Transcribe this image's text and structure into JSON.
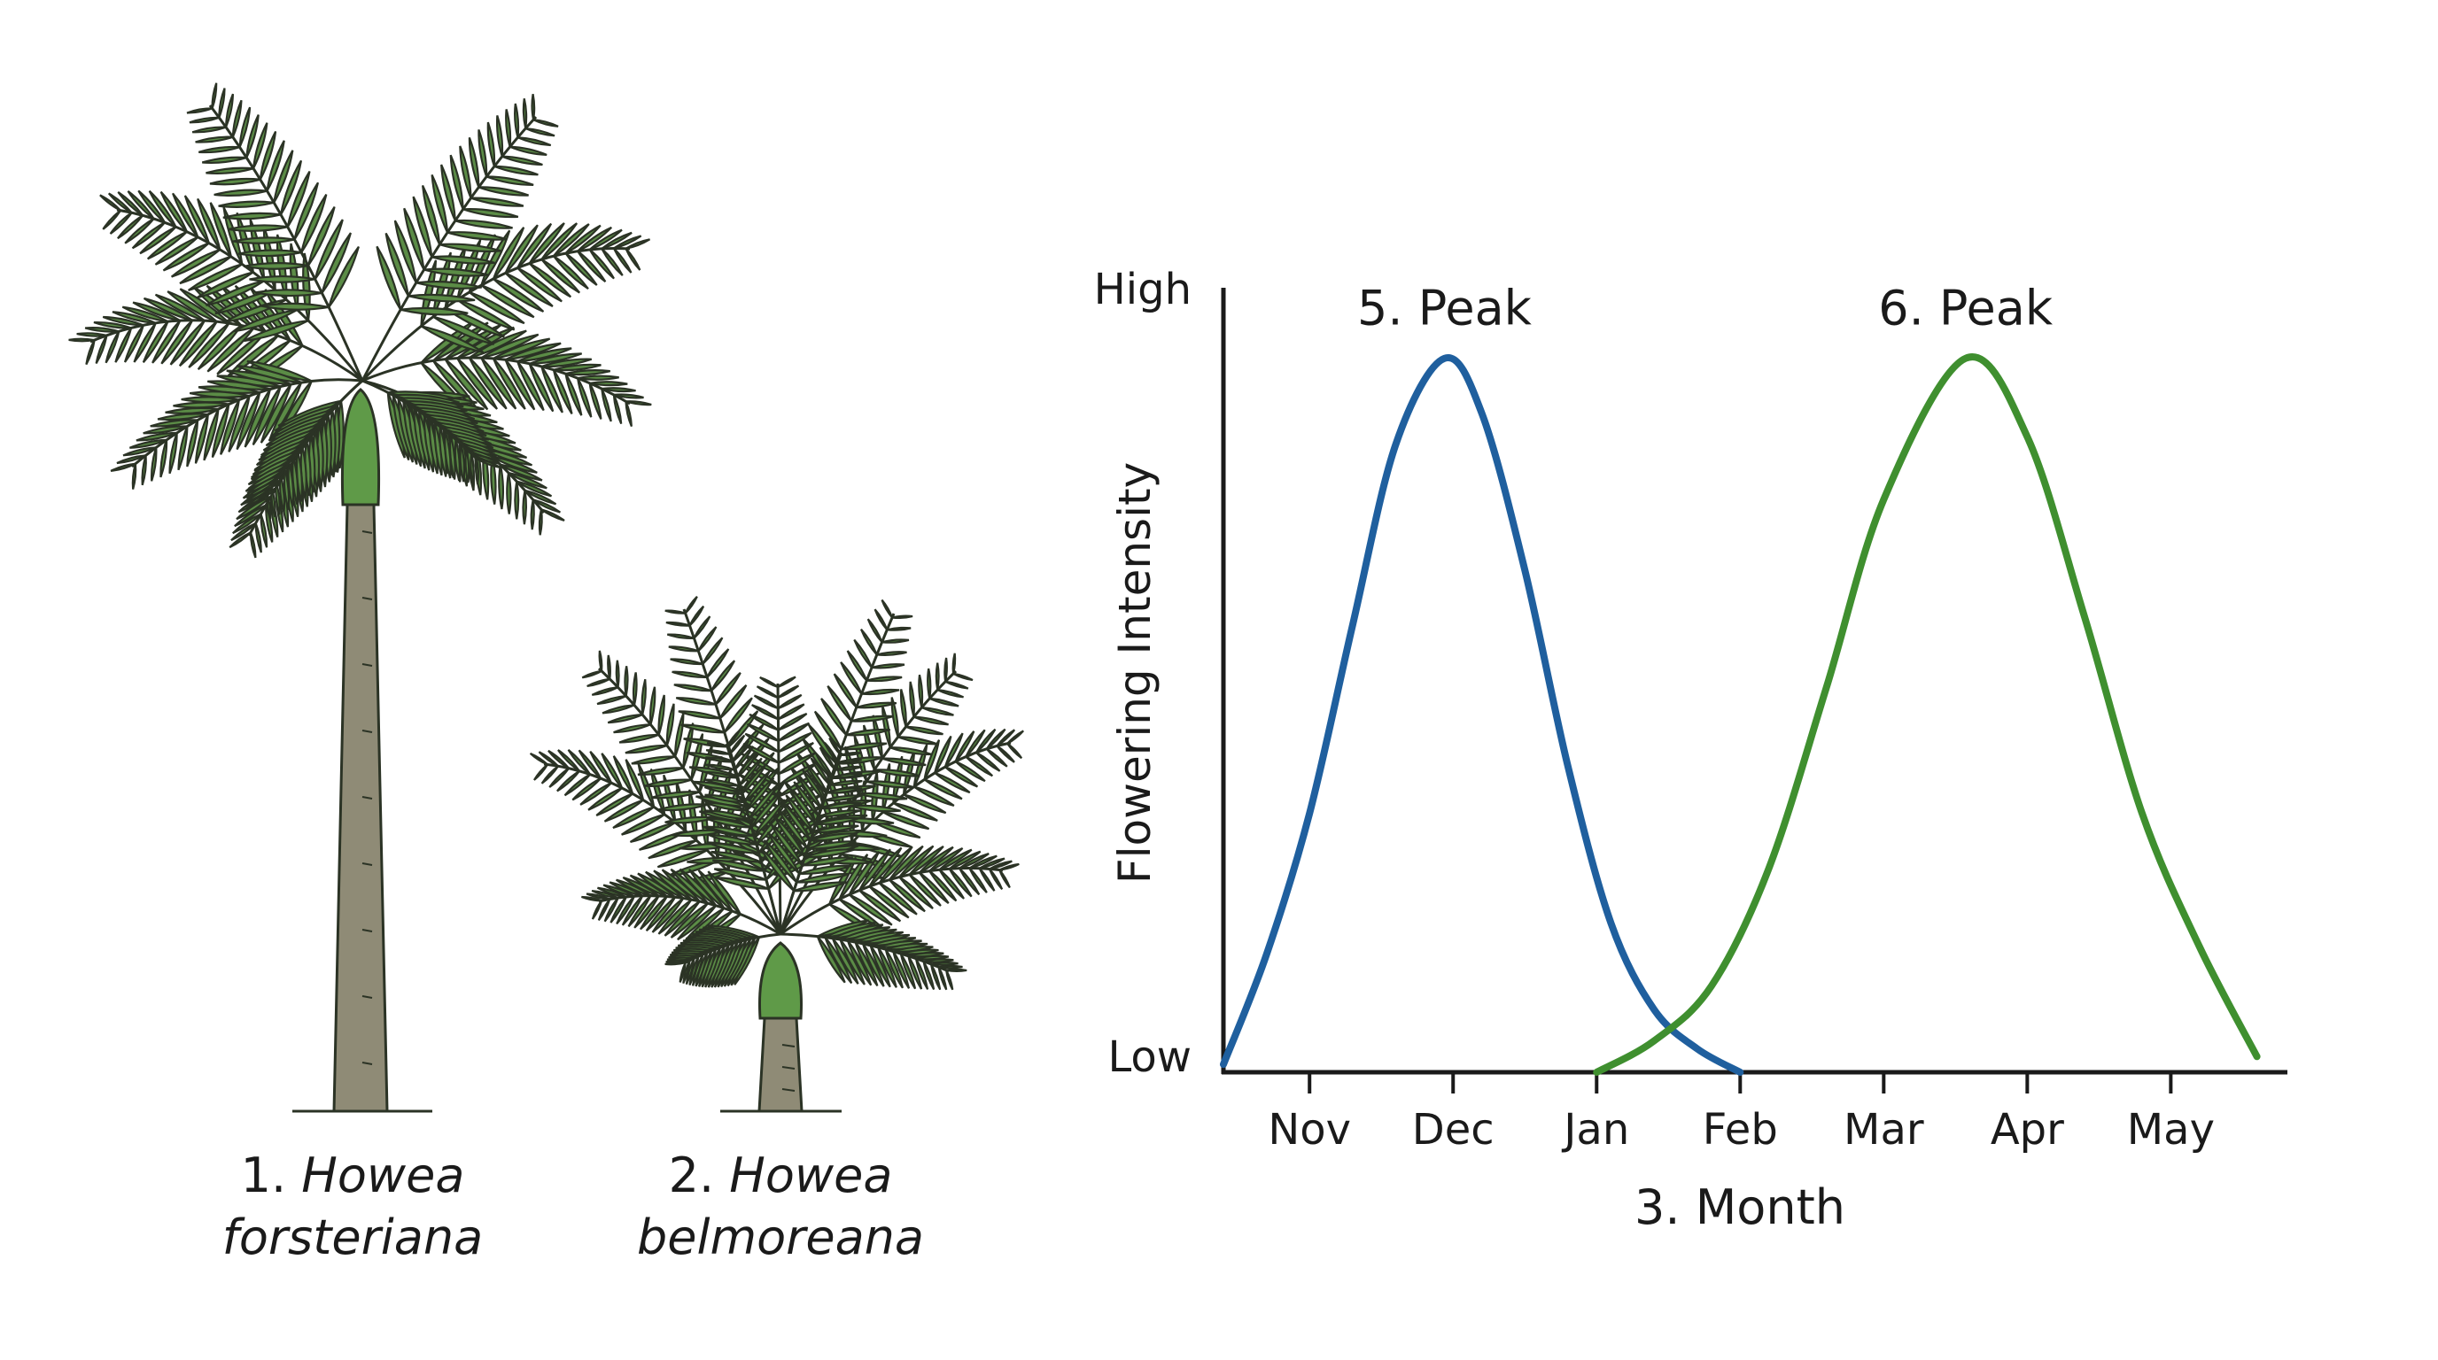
{
  "trees": [
    {
      "number": "1.",
      "genus": "Howea",
      "species": "forsteriana"
    },
    {
      "number": "2.",
      "genus": "Howea",
      "species": "belmoreana"
    }
  ],
  "colors": {
    "foliage": "#5b8c46",
    "outline": "#2b3325",
    "trunk": "#8f8b76",
    "blue_curve": "#1f5f9e",
    "green_curve": "#3f8f2f"
  },
  "chart_data": {
    "type": "line",
    "title": "",
    "xlabel": "3. Month",
    "ylabel": "Flowering Intensity",
    "y_tick_labels": {
      "high": "High",
      "low": "Low"
    },
    "categories": [
      "Nov",
      "Dec",
      "Jan",
      "Feb",
      "Mar",
      "Apr",
      "May"
    ],
    "xlim": [
      -0.6,
      6.8
    ],
    "ylim": [
      0,
      1
    ],
    "grid": false,
    "series": [
      {
        "name": "Howea forsteriana",
        "color": "#1f5f9e",
        "annotation": "5. Peak",
        "x": [
          -0.6,
          -0.3,
          0,
          0.3,
          0.6,
          0.94,
          1.2,
          1.5,
          1.8,
          2.1,
          2.4,
          2.7,
          3.0
        ],
        "y": [
          0.01,
          0.15,
          0.33,
          0.57,
          0.8,
          0.91,
          0.84,
          0.64,
          0.39,
          0.19,
          0.08,
          0.03,
          0.0
        ]
      },
      {
        "name": "Howea belmoreana",
        "color": "#3f8f2f",
        "annotation": "6. Peak",
        "x": [
          2.0,
          2.4,
          2.8,
          3.2,
          3.6,
          4.0,
          4.57,
          5.0,
          5.4,
          5.8,
          6.2,
          6.6
        ],
        "y": [
          0.0,
          0.04,
          0.11,
          0.26,
          0.49,
          0.73,
          0.91,
          0.81,
          0.58,
          0.33,
          0.16,
          0.02
        ]
      }
    ]
  }
}
